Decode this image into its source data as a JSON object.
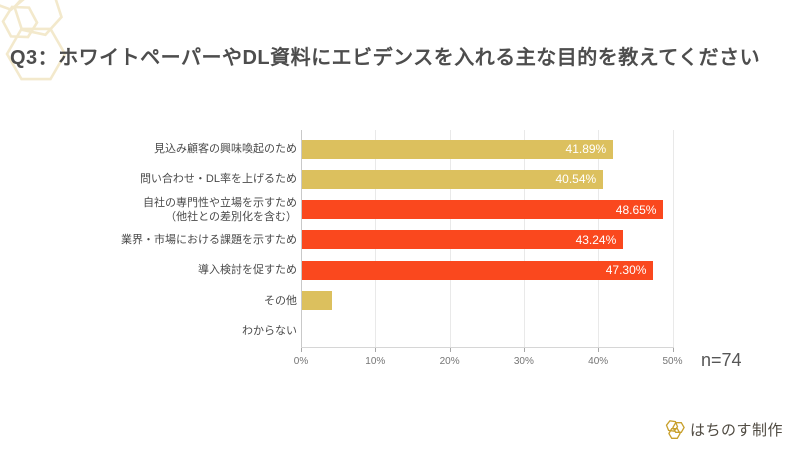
{
  "title": "Q3：ホワイトペーパーやDL資料にエビデンスを入れる主な目的を教えてください",
  "sample_size": "n=74",
  "footer": {
    "brand": "はちのす制作",
    "logo_icon": "honeycomb-hexagons-icon",
    "logo_color": "#c8a02c"
  },
  "decoration": {
    "icon": "hexagon-cluster",
    "color": "#f3e9cc"
  },
  "chart_data": {
    "type": "bar",
    "orientation": "horizontal",
    "title": "",
    "xlabel": "",
    "ylabel": "",
    "xlim": [
      0,
      50
    ],
    "grid": true,
    "legend": false,
    "categories": [
      "見込み顧客の興味喚起のため",
      "問い合わせ・DL率を上げるため",
      "自社の専門性や立場を示すため\n（他社との差別化を含む）",
      "業界・市場における課題を示すため",
      "導入検討を促すため",
      "その他",
      "わからない"
    ],
    "values": [
      41.89,
      40.54,
      48.65,
      43.24,
      47.3,
      4.05,
      0
    ],
    "value_labels": [
      "41.89%",
      "40.54%",
      "48.65%",
      "43.24%",
      "47.30%",
      "",
      ""
    ],
    "bar_colors": [
      "#dcc05e",
      "#dcc05e",
      "#fa481e",
      "#fa481e",
      "#fa481e",
      "#dcc05e",
      "#dcc05e"
    ],
    "value_label_color": "#ffffff",
    "x_ticks": [
      "0%",
      "10%",
      "20%",
      "30%",
      "40%",
      "50%"
    ]
  }
}
